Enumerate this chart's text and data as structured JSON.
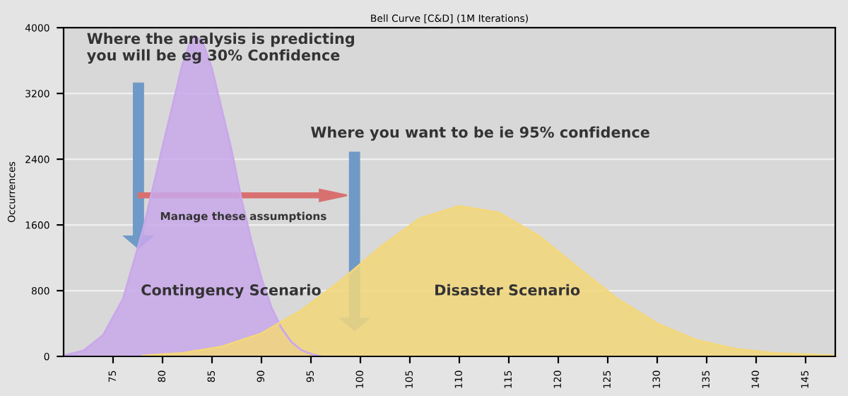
{
  "chart_data": {
    "type": "area",
    "title": "Bell Curve [C&D] (1M Iterations)",
    "ylabel": "Occurrences",
    "series": [
      {
        "color": "#c9a8ea",
        "x": [
          70,
          72,
          74,
          76,
          78,
          80,
          81,
          82,
          83,
          84,
          85,
          86,
          87,
          88,
          89,
          90,
          91,
          92,
          93,
          94,
          95,
          96
        ],
        "values": [
          10,
          70,
          260,
          700,
          1530,
          2550,
          3050,
          3550,
          3900,
          3850,
          3500,
          3000,
          2500,
          1900,
          1400,
          950,
          600,
          350,
          180,
          80,
          30,
          0
        ]
      },
      {
        "color": "#f3d77a",
        "x": [
          78,
          82,
          86,
          90,
          94,
          98,
          102,
          106,
          110,
          114,
          118,
          122,
          126,
          130,
          134,
          138,
          142,
          146,
          148
        ],
        "values": [
          10,
          40,
          120,
          280,
          560,
          920,
          1330,
          1680,
          1830,
          1750,
          1470,
          1080,
          700,
          400,
          200,
          90,
          40,
          20,
          10
        ]
      }
    ],
    "xlim": [
      70,
      148
    ],
    "xticks": [
      75,
      80,
      85,
      90,
      95,
      100,
      105,
      110,
      115,
      120,
      125,
      130,
      135,
      140,
      145
    ],
    "ylim": [
      0,
      4000
    ],
    "yticks": [
      0,
      800,
      1600,
      2400,
      3200,
      4000
    ],
    "grid": "y",
    "annotations": [
      "Where the analysis is predicting you will be eg 30% Confidence",
      "Where you want to be ie 95% confidence",
      "Manage these assumptions",
      "Contingency Scenario",
      "Disaster Scenario"
    ]
  }
}
